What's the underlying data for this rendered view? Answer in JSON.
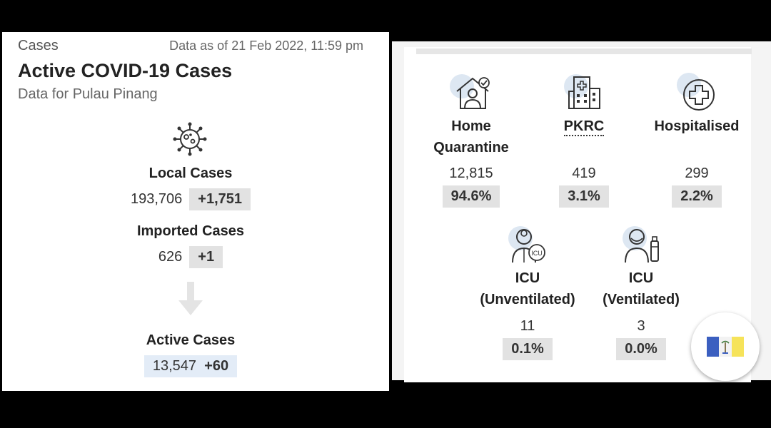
{
  "left": {
    "section_label": "Cases",
    "data_as_of": "Data as of 21 Feb 2022, 11:59 pm",
    "title": "Active COVID-19 Cases",
    "subtitle": "Data for Pulau Pinang",
    "local": {
      "label": "Local Cases",
      "value": "193,706",
      "change": "+1,751"
    },
    "imported": {
      "label": "Imported Cases",
      "value": "626",
      "change": "+1"
    },
    "active": {
      "label": "Active Cases",
      "value": "13,547",
      "change": "+60"
    }
  },
  "right": {
    "home": {
      "label1": "Home",
      "label2": "Quarantine",
      "value": "12,815",
      "percent": "94.6%"
    },
    "pkrc": {
      "label": "PKRC",
      "value": "419",
      "percent": "3.1%"
    },
    "hospitalised": {
      "label": "Hospitalised",
      "value": "299",
      "percent": "2.2%"
    },
    "icu_unvent": {
      "label1": "ICU",
      "label2": "(Unventilated)",
      "value": "11",
      "percent": "0.1%"
    },
    "icu_vent": {
      "label1": "ICU",
      "label2": "(Ventilated)",
      "value": "3",
      "percent": "0.0%"
    }
  },
  "icons": {
    "virus": "virus-icon",
    "arrow": "down-arrow-icon",
    "home": "home-quarantine-icon",
    "pkrc": "building-icon",
    "hospital": "medical-cross-icon",
    "icu_unvent": "icu-doctor-icon",
    "icu_vent": "ventilator-patient-icon",
    "flag": "penang-flag-icon"
  },
  "colors": {
    "chip_gray": "#e2e2e2",
    "chip_blue": "#e3ecf7",
    "flag_blue": "#3b5fc0",
    "flag_yellow": "#f6e35a"
  }
}
